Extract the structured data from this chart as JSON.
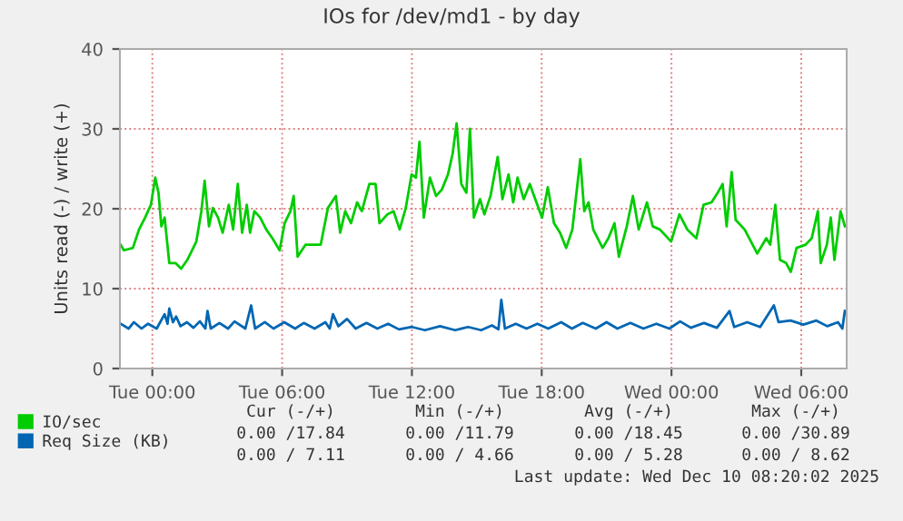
{
  "chart_data": {
    "type": "line",
    "title": "IOs for /dev/md1 - by day",
    "ylabel": "Units read (-) / write (+)",
    "xlim": [
      "2025-12-08T22:30",
      "2025-12-10T08:06"
    ],
    "ylim": [
      0,
      40
    ],
    "yticks": [
      0,
      10,
      20,
      30,
      40
    ],
    "xticks": [
      {
        "value": "2025-12-09T00:00",
        "label": "Tue 00:00"
      },
      {
        "value": "2025-12-09T06:00",
        "label": "Tue 06:00"
      },
      {
        "value": "2025-12-09T12:00",
        "label": "Tue 12:00"
      },
      {
        "value": "2025-12-09T18:00",
        "label": "Tue 18:00"
      },
      {
        "value": "2025-12-10T00:00",
        "label": "Wed 00:00"
      },
      {
        "value": "2025-12-10T06:00",
        "label": "Wed 06:00"
      }
    ],
    "grid": true,
    "legend": "bottom",
    "series": [
      {
        "name": "IO/sec",
        "color": "#00cc00",
        "x": [
          "2025-12-08T22:32",
          "2025-12-08T22:41",
          "2025-12-08T23:06",
          "2025-12-08T23:23",
          "2025-12-08T23:40",
          "2025-12-08T23:56",
          "2025-12-09T00:08",
          "2025-12-09T00:17",
          "2025-12-09T00:25",
          "2025-12-09T00:34",
          "2025-12-09T00:47",
          "2025-12-09T01:04",
          "2025-12-09T01:20",
          "2025-12-09T01:37",
          "2025-12-09T02:02",
          "2025-12-09T02:16",
          "2025-12-09T02:25",
          "2025-12-09T02:37",
          "2025-12-09T02:48",
          "2025-12-09T03:02",
          "2025-12-09T03:15",
          "2025-12-09T03:32",
          "2025-12-09T03:44",
          "2025-12-09T03:57",
          "2025-12-09T04:09",
          "2025-12-09T04:22",
          "2025-12-09T04:31",
          "2025-12-09T04:43",
          "2025-12-09T04:59",
          "2025-12-09T05:16",
          "2025-12-09T05:33",
          "2025-12-09T05:53",
          "2025-12-09T06:07",
          "2025-12-09T06:23",
          "2025-12-09T06:32",
          "2025-12-09T06:43",
          "2025-12-09T07:05",
          "2025-12-09T07:47",
          "2025-12-09T08:07",
          "2025-12-09T08:29",
          "2025-12-09T08:41",
          "2025-12-09T08:55",
          "2025-12-09T09:11",
          "2025-12-09T09:28",
          "2025-12-09T09:41",
          "2025-12-09T10:02",
          "2025-12-09T10:19",
          "2025-12-09T10:30",
          "2025-12-09T10:52",
          "2025-12-09T11:09",
          "2025-12-09T11:26",
          "2025-12-09T11:43",
          "2025-12-09T11:59",
          "2025-12-09T12:11",
          "2025-12-09T12:21",
          "2025-12-09T12:33",
          "2025-12-09T12:50",
          "2025-12-09T13:07",
          "2025-12-09T13:23",
          "2025-12-09T13:40",
          "2025-12-09T13:53",
          "2025-12-09T14:04",
          "2025-12-09T14:17",
          "2025-12-09T14:31",
          "2025-12-09T14:41",
          "2025-12-09T14:52",
          "2025-12-09T15:09",
          "2025-12-09T15:21",
          "2025-12-09T15:38",
          "2025-12-09T15:58",
          "2025-12-09T16:11",
          "2025-12-09T16:28",
          "2025-12-09T16:41",
          "2025-12-09T16:53",
          "2025-12-09T17:10",
          "2025-12-09T17:27",
          "2025-12-09T17:39",
          "2025-12-09T18:01",
          "2025-12-09T18:17",
          "2025-12-09T18:34",
          "2025-12-09T18:51",
          "2025-12-09T19:08",
          "2025-12-09T19:25",
          "2025-12-09T19:47",
          "2025-12-09T19:58",
          "2025-12-09T20:10",
          "2025-12-09T20:23",
          "2025-12-09T20:49",
          "2025-12-09T21:05",
          "2025-12-09T21:22",
          "2025-12-09T21:34",
          "2025-12-09T21:56",
          "2025-12-09T22:13",
          "2025-12-09T22:29",
          "2025-12-09T22:52",
          "2025-12-09T23:08",
          "2025-12-09T23:28",
          "2025-12-09T23:59",
          "2025-12-10T00:22",
          "2025-12-10T00:44",
          "2025-12-10T01:09",
          "2025-12-10T01:29",
          "2025-12-10T01:51",
          "2025-12-10T02:08",
          "2025-12-10T02:22",
          "2025-12-10T02:33",
          "2025-12-10T02:47",
          "2025-12-10T02:58",
          "2025-12-10T03:23",
          "2025-12-10T03:58",
          "2025-12-10T04:23",
          "2025-12-10T04:34",
          "2025-12-10T04:48",
          "2025-12-10T05:01",
          "2025-12-10T05:18",
          "2025-12-10T05:31",
          "2025-12-10T05:47",
          "2025-12-10T06:12",
          "2025-12-10T06:29",
          "2025-12-10T06:46",
          "2025-12-10T06:54",
          "2025-12-10T07:11",
          "2025-12-10T07:22",
          "2025-12-10T07:32",
          "2025-12-10T07:49",
          "2025-12-10T08:01"
        ],
        "values": [
          15.5,
          14.8,
          15.1,
          17.4,
          18.9,
          20.5,
          23.9,
          22.0,
          17.8,
          18.9,
          13.2,
          13.2,
          12.5,
          13.6,
          15.9,
          19.7,
          23.5,
          17.8,
          20.1,
          18.9,
          17.0,
          20.5,
          17.4,
          23.1,
          17.0,
          20.5,
          17.0,
          19.7,
          18.9,
          17.4,
          16.3,
          14.8,
          18.2,
          19.7,
          21.6,
          14.0,
          15.5,
          15.5,
          20.1,
          21.6,
          17.0,
          19.7,
          18.2,
          20.8,
          19.7,
          23.1,
          23.1,
          18.2,
          19.3,
          19.7,
          17.4,
          20.1,
          24.3,
          23.9,
          28.4,
          18.9,
          23.9,
          21.6,
          22.4,
          24.3,
          26.9,
          30.7,
          23.1,
          22.0,
          30.0,
          18.9,
          21.2,
          19.3,
          21.6,
          26.5,
          21.2,
          24.3,
          20.8,
          23.9,
          21.2,
          23.1,
          21.6,
          18.9,
          22.7,
          18.2,
          17.0,
          15.1,
          17.4,
          26.2,
          19.7,
          20.8,
          17.4,
          15.1,
          16.3,
          18.2,
          14.0,
          17.8,
          21.6,
          17.4,
          20.8,
          17.8,
          17.4,
          15.9,
          19.3,
          17.4,
          16.3,
          20.5,
          20.8,
          22.0,
          23.1,
          17.8,
          24.6,
          18.6,
          17.4,
          14.4,
          16.3,
          15.5,
          20.5,
          13.6,
          13.2,
          12.1,
          15.1,
          15.5,
          16.3,
          19.7,
          13.2,
          15.5,
          18.9,
          13.6,
          19.7,
          17.8
        ]
      },
      {
        "name": "Req Size (KB)",
        "color": "#0066b3",
        "x": [
          "2025-12-08T22:32",
          "2025-12-08T22:54",
          "2025-12-08T23:09",
          "2025-12-08T23:30",
          "2025-12-08T23:48",
          "2025-12-09T00:12",
          "2025-12-09T00:34",
          "2025-12-09T00:42",
          "2025-12-09T00:47",
          "2025-12-09T00:57",
          "2025-12-09T01:06",
          "2025-12-09T01:18",
          "2025-12-09T01:36",
          "2025-12-09T01:54",
          "2025-12-09T02:12",
          "2025-12-09T02:27",
          "2025-12-09T02:33",
          "2025-12-09T02:42",
          "2025-12-09T03:06",
          "2025-12-09T03:30",
          "2025-12-09T03:48",
          "2025-12-09T04:18",
          "2025-12-09T04:34",
          "2025-12-09T04:45",
          "2025-12-09T05:12",
          "2025-12-09T05:36",
          "2025-12-09T06:06",
          "2025-12-09T06:36",
          "2025-12-09T07:00",
          "2025-12-09T07:30",
          "2025-12-09T08:00",
          "2025-12-09T08:12",
          "2025-12-09T08:21",
          "2025-12-09T08:36",
          "2025-12-09T09:00",
          "2025-12-09T09:24",
          "2025-12-09T09:54",
          "2025-12-09T10:24",
          "2025-12-09T10:54",
          "2025-12-09T11:24",
          "2025-12-09T12:00",
          "2025-12-09T12:36",
          "2025-12-09T13:18",
          "2025-12-09T14:00",
          "2025-12-09T14:36",
          "2025-12-09T15:12",
          "2025-12-09T15:42",
          "2025-12-09T16:00",
          "2025-12-09T16:08",
          "2025-12-09T16:18",
          "2025-12-09T16:48",
          "2025-12-09T17:18",
          "2025-12-09T17:48",
          "2025-12-09T18:18",
          "2025-12-09T18:54",
          "2025-12-09T19:24",
          "2025-12-09T19:54",
          "2025-12-09T20:30",
          "2025-12-09T21:00",
          "2025-12-09T21:30",
          "2025-12-09T22:06",
          "2025-12-09T22:42",
          "2025-12-09T23:18",
          "2025-12-09T23:54",
          "2025-12-10T00:24",
          "2025-12-10T00:54",
          "2025-12-10T01:30",
          "2025-12-10T02:06",
          "2025-12-10T02:41",
          "2025-12-10T02:54",
          "2025-12-10T03:30",
          "2025-12-10T04:06",
          "2025-12-10T04:44",
          "2025-12-10T04:57",
          "2025-12-10T05:30",
          "2025-12-10T06:06",
          "2025-12-10T06:42",
          "2025-12-10T07:12",
          "2025-12-10T07:42",
          "2025-12-10T07:54",
          "2025-12-10T08:01"
        ],
        "values": [
          5.6,
          5.0,
          5.8,
          5.0,
          5.6,
          5.0,
          6.8,
          5.6,
          7.5,
          5.8,
          6.5,
          5.3,
          5.8,
          5.1,
          5.9,
          5.0,
          7.2,
          5.0,
          5.7,
          5.0,
          5.9,
          5.0,
          7.9,
          5.0,
          5.8,
          5.0,
          5.8,
          5.0,
          5.7,
          5.0,
          5.8,
          5.0,
          6.8,
          5.3,
          6.2,
          5.0,
          5.7,
          5.0,
          5.6,
          4.9,
          5.2,
          4.8,
          5.3,
          4.8,
          5.2,
          4.8,
          5.4,
          4.9,
          8.6,
          5.0,
          5.6,
          5.0,
          5.6,
          5.0,
          5.8,
          5.0,
          5.7,
          5.0,
          5.8,
          5.0,
          5.7,
          5.0,
          5.6,
          5.0,
          5.9,
          5.1,
          5.7,
          5.1,
          7.2,
          5.2,
          5.8,
          5.2,
          7.9,
          5.8,
          6.0,
          5.5,
          6.0,
          5.3,
          5.8,
          5.0,
          7.2
        ]
      }
    ],
    "annotations": [
      "Cur (-/+)",
      "Min (-/+)",
      "Avg (-/+)",
      "Max (-/+)",
      "0.00 /17.84",
      "0.00 /11.79",
      "0.00 /18.45",
      "0.00 /30.89",
      "0.00 / 7.11",
      "0.00 / 4.66",
      "0.00 / 5.28",
      "0.00 / 8.62",
      "Last update: Wed Dec 10 08:20:02 2025"
    ]
  }
}
